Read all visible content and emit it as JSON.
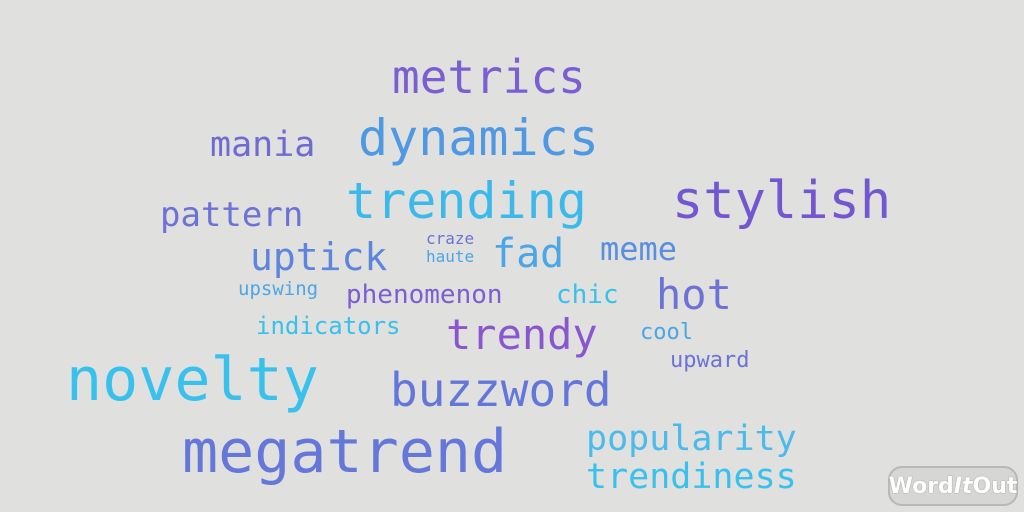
{
  "words": {
    "metrics": "metrics",
    "mania": "mania",
    "dynamics": "dynamics",
    "pattern": "pattern",
    "trending": "trending",
    "stylish": "stylish",
    "uptick": "uptick",
    "craze": "craze",
    "haute": "haute",
    "fad": "fad",
    "meme": "meme",
    "upswing": "upswing",
    "phenomenon": "phenomenon",
    "chic": "chic",
    "hot": "hot",
    "indicators": "indicators",
    "trendy": "trendy",
    "cool": "cool",
    "upward": "upward",
    "novelty": "novelty",
    "buzzword": "buzzword",
    "megatrend": "megatrend",
    "popularity": "popularity",
    "trendiness": "trendiness"
  },
  "colors": {
    "purple": "#7b5fd1",
    "violet": "#8a56cf",
    "indigo": "#6c72d6",
    "blue": "#5a8fe0",
    "sky": "#4aa6e6",
    "cyan": "#38c1ec"
  },
  "logo": {
    "part1": "Word",
    "part2": "It",
    "part3": "Out"
  }
}
